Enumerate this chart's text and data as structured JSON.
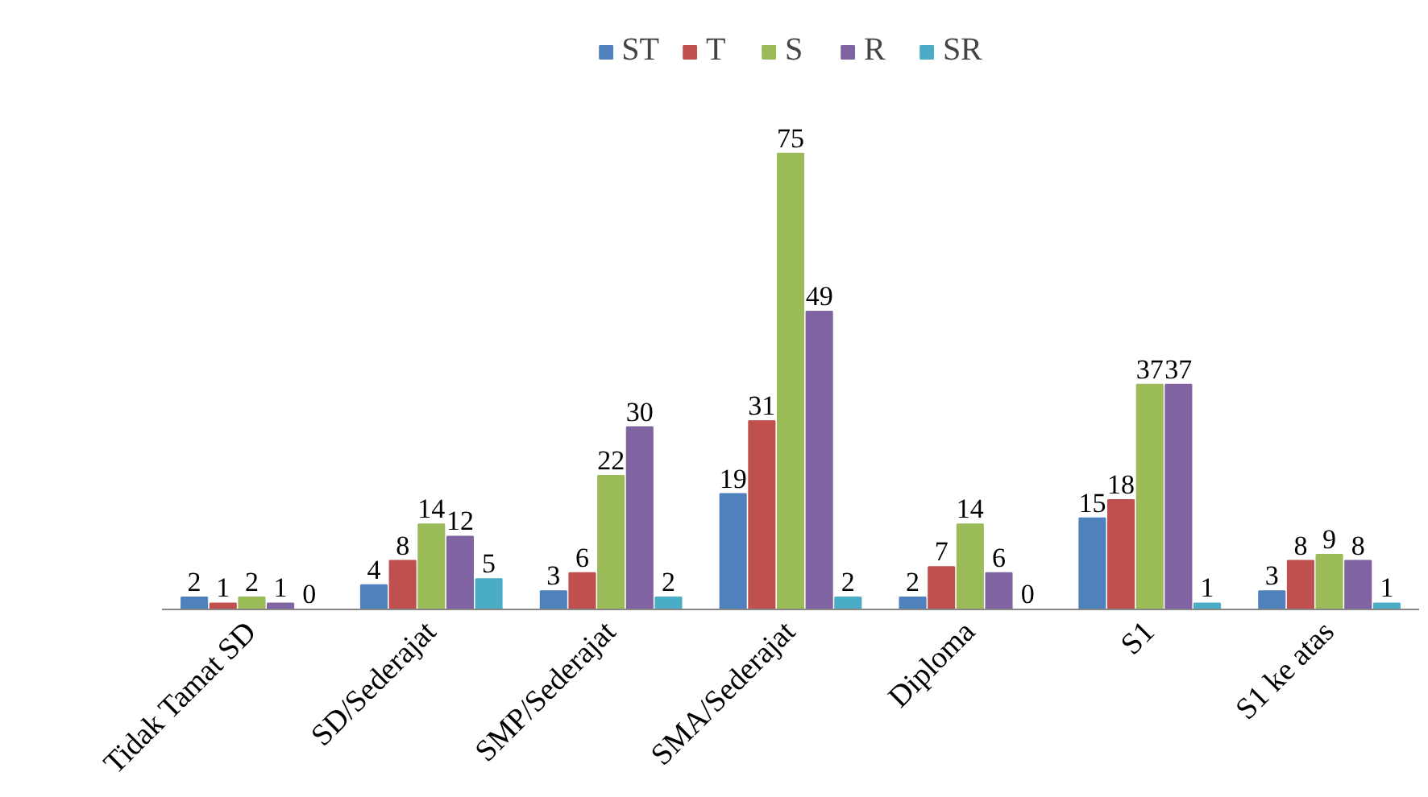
{
  "chart_data": {
    "type": "bar",
    "categories": [
      "Tidak Tamat SD",
      "SD/Sederajat",
      "SMP/Sederajat",
      "SMA/Sederajat",
      "Diploma",
      "S1",
      "S1 ke atas"
    ],
    "series": [
      {
        "name": "ST",
        "color": "#4f81bd",
        "values": [
          2,
          4,
          3,
          19,
          2,
          15,
          3
        ]
      },
      {
        "name": "T",
        "color": "#c0504d",
        "values": [
          1,
          8,
          6,
          31,
          7,
          18,
          8
        ]
      },
      {
        "name": "S",
        "color": "#9bbb59",
        "values": [
          2,
          14,
          22,
          75,
          14,
          37,
          9
        ]
      },
      {
        "name": "R",
        "color": "#8064a2",
        "values": [
          1,
          12,
          30,
          49,
          6,
          37,
          8
        ]
      },
      {
        "name": "SR",
        "color": "#4bacc6",
        "values": [
          0,
          5,
          2,
          2,
          0,
          1,
          1
        ]
      }
    ],
    "data_labels": true,
    "legend": "top",
    "grid": false
  }
}
